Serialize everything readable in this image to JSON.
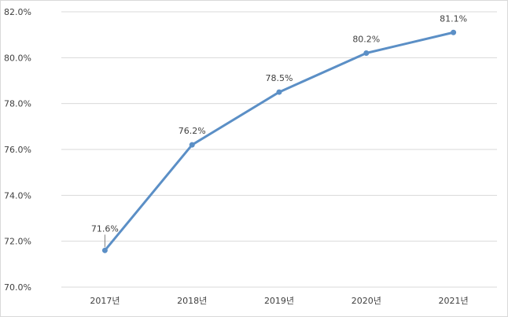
{
  "chart_data": {
    "type": "line",
    "title": "",
    "xlabel": "",
    "ylabel": "",
    "categories": [
      "2017년",
      "2018년",
      "2019년",
      "2020년",
      "2021년"
    ],
    "series": [
      {
        "values": [
          71.6,
          76.2,
          78.5,
          80.2,
          81.1
        ],
        "color": "#5b8fc6"
      }
    ],
    "data_labels": [
      "71.6%",
      "76.2%",
      "78.5%",
      "80.2%",
      "81.1%"
    ],
    "y_ticks": [
      "70.0%",
      "72.0%",
      "74.0%",
      "76.0%",
      "78.0%",
      "80.0%",
      "82.0%"
    ],
    "ylim": [
      70,
      82
    ],
    "grid": true,
    "legend": "none",
    "gridline_color": "#d9d9d9"
  }
}
